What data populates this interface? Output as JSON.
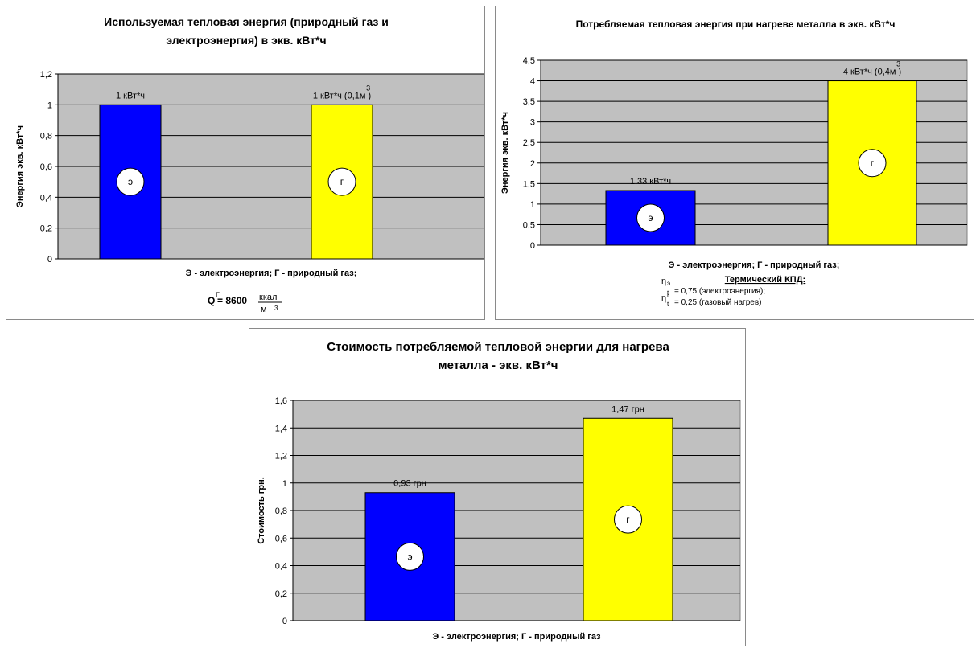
{
  "chart_data": [
    {
      "type": "bar",
      "title_lines": [
        "Используемая тепловая энергия (природный газ и",
        "электроэнергия) в экв. кВт*ч"
      ],
      "ylabel": "Энергия экв. кВт*ч",
      "xlabel": "",
      "ylim": [
        0,
        1.2
      ],
      "yticks": [
        "0",
        "0,2",
        "0,4",
        "0,6",
        "0,8",
        "1",
        "1,2"
      ],
      "tick_values": [
        0,
        0.2,
        0.4,
        0.6,
        0.8,
        1,
        1.2
      ],
      "categories": [
        "Э",
        "Г"
      ],
      "values": [
        1,
        1
      ],
      "colors": [
        "#0000ff",
        "#ffff00"
      ],
      "data_labels": [
        "1 кВт*ч",
        "1 кВт*ч (0,1м )"
      ],
      "data_label_sup": [
        "",
        "3"
      ],
      "category_markers": [
        "э",
        "г"
      ],
      "grid": true,
      "plot_bg": "#c0c0c0",
      "legend": "Э - электроэнергия; Г - природный газ;",
      "formula": {
        "q": "Q",
        "q_sup": "Г",
        "equals": "= 8600",
        "num": "ккал",
        "den": "м",
        "den_sup": "3"
      }
    },
    {
      "type": "bar",
      "title_lines": [
        "Потребляемая тепловая энергия при нагреве металла в экв. кВт*ч"
      ],
      "ylabel": "Энергия экв. кВт*ч",
      "xlabel": "",
      "ylim": [
        0,
        4.5
      ],
      "yticks": [
        "0",
        "0,5",
        "1",
        "1,5",
        "2",
        "2,5",
        "3",
        "3,5",
        "4",
        "4,5"
      ],
      "tick_values": [
        0,
        0.5,
        1,
        1.5,
        2,
        2.5,
        3,
        3.5,
        4,
        4.5
      ],
      "categories": [
        "Э",
        "Г"
      ],
      "values": [
        1.33,
        4
      ],
      "colors": [
        "#0000ff",
        "#ffff00"
      ],
      "data_labels": [
        "1,33 кВт*ч",
        "4 кВт*ч (0,4м )"
      ],
      "data_label_sup": [
        "",
        "3"
      ],
      "category_markers": [
        "э",
        "г"
      ],
      "grid": true,
      "plot_bg": "#c0c0c0",
      "legend": "Э - электроэнергия; Г - природный газ;",
      "efficiency": {
        "heading": "Термический КПД:",
        "eta": "η",
        "lines": [
          {
            "sup": "э",
            "sub": "t",
            "text": "= 0,75 (электроэнергия);"
          },
          {
            "sup": "г",
            "sub": "t",
            "text": "= 0,25 (газовый нагрев)"
          }
        ]
      }
    },
    {
      "type": "bar",
      "title_lines": [
        "Стоимость потребляемой тепловой энергии для нагрева",
        "металла - экв. кВт*ч"
      ],
      "ylabel": "Стоимость грн.",
      "xlabel": "",
      "ylim": [
        0,
        1.6
      ],
      "yticks": [
        "0",
        "0,2",
        "0,4",
        "0,6",
        "0,8",
        "1",
        "1,2",
        "1,4",
        "1,6"
      ],
      "tick_values": [
        0,
        0.2,
        0.4,
        0.6,
        0.8,
        1,
        1.2,
        1.4,
        1.6
      ],
      "categories": [
        "Э",
        "Г"
      ],
      "values": [
        0.93,
        1.47
      ],
      "colors": [
        "#0000ff",
        "#ffff00"
      ],
      "data_labels": [
        "0,93 грн",
        "1,47 грн"
      ],
      "data_label_sup": [
        "",
        ""
      ],
      "category_markers": [
        "э",
        "г"
      ],
      "grid": true,
      "plot_bg": "#c0c0c0",
      "legend": "Э - электроэнергия; Г - природный газ"
    }
  ]
}
